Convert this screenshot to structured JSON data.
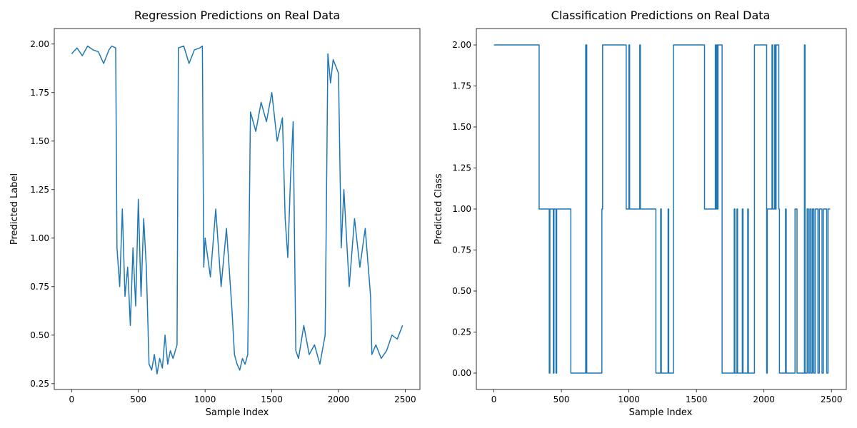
{
  "colors": {
    "series": "#1f77b4"
  },
  "chart_data": [
    {
      "type": "line",
      "title": "Regression Predictions on Real Data",
      "xlabel": "Sample Index",
      "ylabel": "Predicted Label",
      "xlim": [
        -130,
        2610
      ],
      "ylim": [
        0.22,
        2.08
      ],
      "xticks": [
        0,
        500,
        1000,
        1500,
        2000,
        2500
      ],
      "xtick_labels": [
        "0",
        "500",
        "1000",
        "1500",
        "2000",
        "2500"
      ],
      "yticks": [
        0.25,
        0.5,
        0.75,
        1.0,
        1.25,
        1.5,
        1.75,
        2.0
      ],
      "ytick_labels": [
        "0.25",
        "0.50",
        "0.75",
        "1.00",
        "1.25",
        "1.50",
        "1.75",
        "2.00"
      ],
      "grid": false,
      "legend": "none",
      "series": [
        {
          "x": [
            0,
            40,
            80,
            120,
            160,
            200,
            240,
            280,
            300,
            330,
            340,
            360,
            380,
            400,
            420,
            440,
            460,
            480,
            500,
            520,
            540,
            560,
            580,
            600,
            620,
            640,
            660,
            680,
            700,
            720,
            740,
            760,
            790,
            800,
            840,
            880,
            920,
            960,
            980,
            990,
            1000,
            1040,
            1080,
            1120,
            1160,
            1200,
            1220,
            1240,
            1260,
            1280,
            1300,
            1320,
            1340,
            1380,
            1420,
            1460,
            1500,
            1540,
            1580,
            1600,
            1620,
            1640,
            1660,
            1680,
            1700,
            1740,
            1780,
            1820,
            1860,
            1900,
            1920,
            1940,
            1960,
            2000,
            2020,
            2040,
            2080,
            2120,
            2160,
            2200,
            2240,
            2250,
            2280,
            2320,
            2360,
            2400,
            2440,
            2480
          ],
          "y": [
            1.95,
            1.98,
            1.94,
            1.99,
            1.97,
            1.96,
            1.9,
            1.97,
            1.99,
            1.98,
            0.95,
            0.75,
            1.15,
            0.7,
            0.85,
            0.55,
            0.95,
            0.65,
            1.2,
            0.7,
            1.1,
            0.85,
            0.35,
            0.32,
            0.4,
            0.3,
            0.38,
            0.33,
            0.5,
            0.35,
            0.42,
            0.38,
            0.45,
            1.98,
            1.99,
            1.9,
            1.97,
            1.98,
            1.99,
            0.85,
            1.0,
            0.8,
            1.15,
            0.75,
            1.05,
            0.65,
            0.4,
            0.35,
            0.32,
            0.38,
            0.35,
            0.4,
            1.65,
            1.55,
            1.7,
            1.6,
            1.75,
            1.5,
            1.62,
            1.1,
            0.9,
            1.3,
            1.6,
            0.42,
            0.38,
            0.55,
            0.4,
            0.45,
            0.35,
            0.5,
            1.95,
            1.8,
            1.92,
            1.85,
            0.95,
            1.25,
            0.75,
            1.1,
            0.85,
            1.05,
            0.7,
            0.4,
            0.45,
            0.38,
            0.42,
            0.5,
            0.48,
            0.55
          ]
        }
      ]
    },
    {
      "type": "line",
      "title": "Classification Predictions on Real Data",
      "xlabel": "Sample Index",
      "ylabel": "Predicted Class",
      "xlim": [
        -130,
        2610
      ],
      "ylim": [
        -0.1,
        2.1
      ],
      "xticks": [
        0,
        500,
        1000,
        1500,
        2000,
        2500
      ],
      "xtick_labels": [
        "0",
        "500",
        "1000",
        "1500",
        "2000",
        "2500"
      ],
      "yticks": [
        0.0,
        0.25,
        0.5,
        0.75,
        1.0,
        1.25,
        1.5,
        1.75,
        2.0
      ],
      "ytick_labels": [
        "0.00",
        "0.25",
        "0.50",
        "0.75",
        "1.00",
        "1.25",
        "1.50",
        "1.75",
        "2.00"
      ],
      "grid": false,
      "legend": "none",
      "series": [
        {
          "x": [
            0,
            335,
            335,
            410,
            410,
            415,
            415,
            440,
            440,
            445,
            445,
            460,
            460,
            465,
            465,
            570,
            570,
            680,
            680,
            688,
            688,
            800,
            800,
            805,
            805,
            980,
            980,
            1000,
            1000,
            1005,
            1005,
            1080,
            1080,
            1085,
            1085,
            1200,
            1200,
            1235,
            1235,
            1240,
            1240,
            1290,
            1290,
            1295,
            1295,
            1330,
            1330,
            1560,
            1560,
            1640,
            1640,
            1645,
            1645,
            1650,
            1650,
            1655,
            1655,
            1660,
            1660,
            1690,
            1690,
            1780,
            1780,
            1785,
            1785,
            1800,
            1800,
            1805,
            1805,
            1840,
            1840,
            1845,
            1845,
            1880,
            1880,
            1885,
            1885,
            1930,
            1930,
            2020,
            2020,
            2025,
            2025,
            2060,
            2060,
            2065,
            2065,
            2080,
            2080,
            2085,
            2085,
            2090,
            2090,
            2110,
            2110,
            2115,
            2115,
            2160,
            2160,
            2165,
            2165,
            2230,
            2230,
            2245,
            2245,
            2300,
            2300,
            2305,
            2305,
            2320,
            2320,
            2330,
            2330,
            2340,
            2340,
            2350,
            2350,
            2360,
            2360,
            2370,
            2370,
            2380,
            2380,
            2400,
            2400,
            2410,
            2410,
            2430,
            2430,
            2440,
            2440,
            2465,
            2465,
            2475,
            2475,
            2490
          ],
          "y": [
            2,
            2,
            1,
            1,
            0,
            0,
            1,
            1,
            0,
            0,
            1,
            1,
            0,
            0,
            1,
            1,
            0,
            0,
            2,
            2,
            0,
            0,
            1,
            1,
            2,
            2,
            1,
            1,
            2,
            2,
            1,
            1,
            2,
            2,
            1,
            1,
            0,
            0,
            1,
            1,
            0,
            0,
            1,
            1,
            0,
            0,
            2,
            2,
            1,
            1,
            2,
            2,
            1,
            1,
            2,
            2,
            1,
            1,
            2,
            2,
            0,
            0,
            1,
            1,
            0,
            0,
            1,
            1,
            0,
            0,
            1,
            1,
            0,
            0,
            1,
            1,
            0,
            0,
            2,
            2,
            0,
            0,
            1,
            1,
            2,
            2,
            1,
            1,
            2,
            2,
            1,
            1,
            2,
            2,
            1,
            1,
            0,
            0,
            1,
            1,
            0,
            0,
            1,
            1,
            0,
            0,
            2,
            2,
            0,
            0,
            1,
            1,
            0,
            0,
            1,
            1,
            0,
            0,
            1,
            1,
            0,
            0,
            1,
            1,
            0,
            0,
            1,
            1,
            0,
            0,
            1,
            1,
            0,
            0,
            1,
            1
          ]
        }
      ]
    }
  ]
}
